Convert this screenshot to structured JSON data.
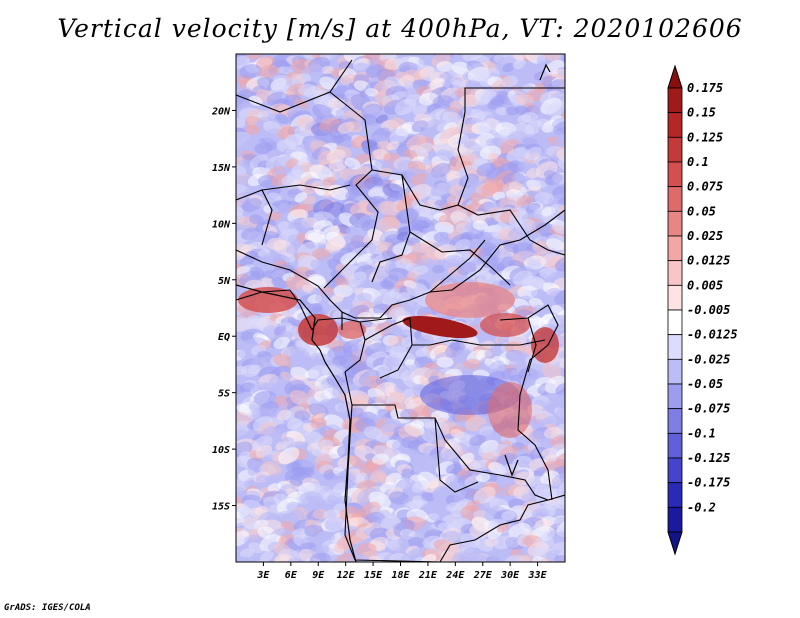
{
  "title": "Vertical velocity [m/s] at 400hPa, VT: 2020102606",
  "credit": "GrADS: IGES/COLA",
  "map": {
    "lon_range": [
      0,
      36
    ],
    "lat_range": [
      -20,
      25
    ],
    "lat_ticks": [
      {
        "value": 20,
        "label": "20N"
      },
      {
        "value": 15,
        "label": "15N"
      },
      {
        "value": 10,
        "label": "10N"
      },
      {
        "value": 5,
        "label": "5N"
      },
      {
        "value": 0,
        "label": "EQ"
      },
      {
        "value": -5,
        "label": "5S"
      },
      {
        "value": -10,
        "label": "10S"
      },
      {
        "value": -15,
        "label": "15S"
      }
    ],
    "lon_ticks": [
      {
        "value": 3,
        "label": "3E"
      },
      {
        "value": 6,
        "label": "6E"
      },
      {
        "value": 9,
        "label": "9E"
      },
      {
        "value": 12,
        "label": "12E"
      },
      {
        "value": 15,
        "label": "15E"
      },
      {
        "value": 18,
        "label": "18E"
      },
      {
        "value": 21,
        "label": "21E"
      },
      {
        "value": 24,
        "label": "24E"
      },
      {
        "value": 27,
        "label": "27E"
      },
      {
        "value": 30,
        "label": "30E"
      },
      {
        "value": 33,
        "label": "33E"
      }
    ]
  },
  "colorbar": {
    "entries": [
      {
        "label": "0.175",
        "color": "#a11a1a"
      },
      {
        "label": "0.15",
        "color": "#b52626"
      },
      {
        "label": "0.125",
        "color": "#c43a3a"
      },
      {
        "label": "0.1",
        "color": "#d45050"
      },
      {
        "label": "0.075",
        "color": "#df6a6a"
      },
      {
        "label": "0.05",
        "color": "#e88686"
      },
      {
        "label": "0.025",
        "color": "#f2a6a6"
      },
      {
        "label": "0.0125",
        "color": "#f8c6c6"
      },
      {
        "label": "0.005",
        "color": "#fde3e3"
      },
      {
        "label": "-0.005",
        "color": "#ffffff"
      },
      {
        "label": "-0.0125",
        "color": "#dcdcfc"
      },
      {
        "label": "-0.025",
        "color": "#bcbcf6"
      },
      {
        "label": "-0.05",
        "color": "#9d9df0"
      },
      {
        "label": "-0.075",
        "color": "#7e7ee6"
      },
      {
        "label": "-0.1",
        "color": "#6060da"
      },
      {
        "label": "-0.125",
        "color": "#4444cc"
      },
      {
        "label": "-0.175",
        "color": "#2a2ab8"
      },
      {
        "label": "-0.2",
        "color": "#1a1aa0"
      }
    ],
    "top_cap_color": "#8b0e0e",
    "bottom_cap_color": "#14148a"
  }
}
